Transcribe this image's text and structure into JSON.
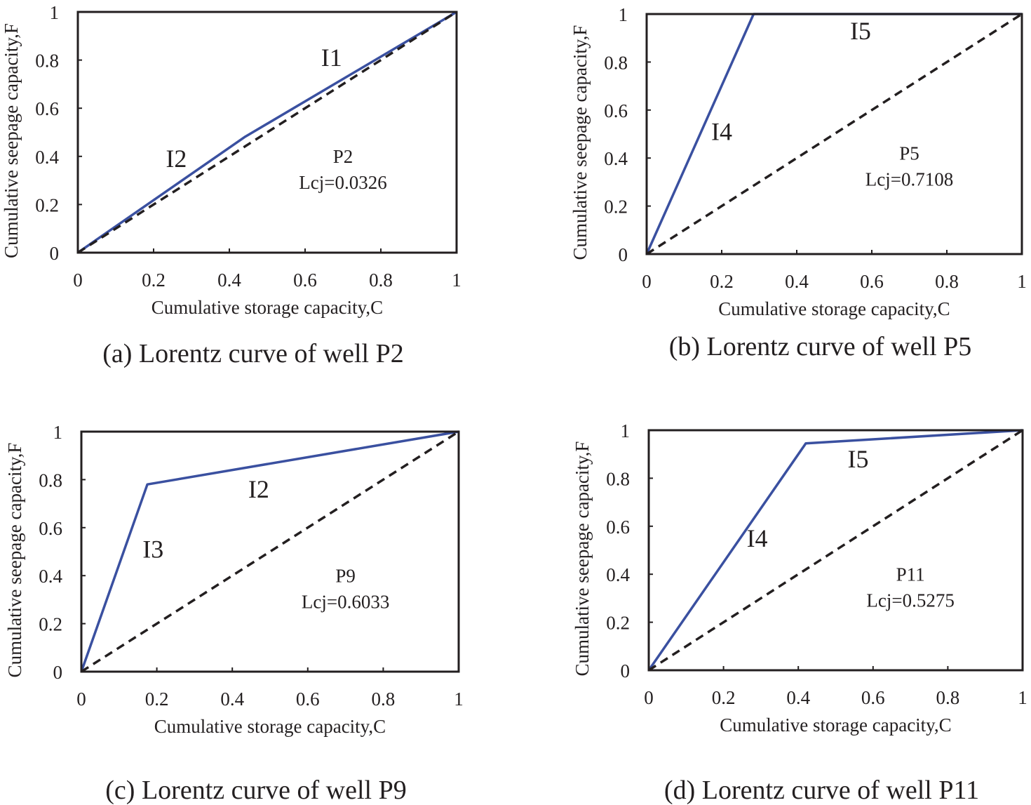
{
  "chart_data": [
    {
      "type": "line",
      "caption": "(a) Lorentz curve of well P2",
      "xlabel": "Cumulative storage capacity,C",
      "ylabel": "Cumulative seepage capacity,F",
      "xlim": [
        0,
        1
      ],
      "ylim": [
        0,
        1
      ],
      "xticks": [
        "0",
        "0.2",
        "0.4",
        "0.6",
        "0.8",
        "1"
      ],
      "yticks": [
        "0",
        "0.2",
        "0.4",
        "0.6",
        "0.8",
        "1"
      ],
      "series": [
        {
          "x": [
            0,
            0.44,
            1
          ],
          "y": [
            0,
            0.48,
            1
          ],
          "color": "#3a50a0"
        },
        {
          "x": [
            0,
            1
          ],
          "y": [
            0,
            1
          ],
          "color": "#231f20",
          "style": "dashed"
        }
      ],
      "segment_labels": [
        {
          "text": "I1",
          "x": 0.67,
          "y": 0.81
        },
        {
          "text": "I2",
          "x": 0.26,
          "y": 0.39
        }
      ],
      "well": "P2",
      "lcj": "Lcj=0.0326",
      "annotation_pos": [
        0.7,
        0.3
      ]
    },
    {
      "type": "line",
      "caption": "(b) Lorentz curve of well P5",
      "xlabel": "Cumulative storage capacity,C",
      "ylabel": "Cumulative seepage capacity,F",
      "xlim": [
        0,
        1
      ],
      "ylim": [
        0,
        1
      ],
      "xticks": [
        "0",
        "0.2",
        "0.4",
        "0.6",
        "0.8",
        "1"
      ],
      "yticks": [
        "0",
        "0.2",
        "0.4",
        "0.6",
        "0.8",
        "1"
      ],
      "series": [
        {
          "x": [
            0,
            0.285,
            1
          ],
          "y": [
            0,
            1,
            1
          ],
          "color": "#3a50a0"
        },
        {
          "x": [
            0,
            1
          ],
          "y": [
            0,
            1
          ],
          "color": "#231f20",
          "style": "dashed"
        }
      ],
      "segment_labels": [
        {
          "text": "I5",
          "x": 0.57,
          "y": 0.93
        },
        {
          "text": "I4",
          "x": 0.2,
          "y": 0.51
        }
      ],
      "well": "P5",
      "lcj": "Lcj=0.7108",
      "annotation_pos": [
        0.7,
        0.32
      ]
    },
    {
      "type": "line",
      "caption": "(c) Lorentz curve of well P9",
      "xlabel": "Cumulative storage capacity,C",
      "ylabel": "Cumulative seepage capacity,F",
      "xlim": [
        0,
        1
      ],
      "ylim": [
        0,
        1
      ],
      "xticks": [
        "0",
        "0.2",
        "0.4",
        "0.6",
        "0.8",
        "1"
      ],
      "yticks": [
        "0",
        "0.2",
        "0.4",
        "0.6",
        "0.8",
        "1"
      ],
      "series": [
        {
          "x": [
            0,
            0.175,
            1
          ],
          "y": [
            0,
            0.78,
            1
          ],
          "color": "#3a50a0"
        },
        {
          "x": [
            0,
            1
          ],
          "y": [
            0,
            1
          ],
          "color": "#231f20",
          "style": "dashed"
        }
      ],
      "segment_labels": [
        {
          "text": "I2",
          "x": 0.47,
          "y": 0.76
        },
        {
          "text": "I3",
          "x": 0.19,
          "y": 0.51
        }
      ],
      "well": "P9",
      "lcj": "Lcj=0.6033",
      "annotation_pos": [
        0.7,
        0.3
      ]
    },
    {
      "type": "line",
      "caption": "(d) Lorentz curve of well P11",
      "xlabel": "Cumulative storage capacity,C",
      "ylabel": "Cumulative seepage capacity,F",
      "xlim": [
        0,
        1
      ],
      "ylim": [
        0,
        1
      ],
      "xticks": [
        "0",
        "0.2",
        "0.4",
        "0.6",
        "0.8",
        "1"
      ],
      "yticks": [
        "0",
        "0.2",
        "0.4",
        "0.6",
        "0.8",
        "1"
      ],
      "series": [
        {
          "x": [
            0,
            0.42,
            1
          ],
          "y": [
            0,
            0.945,
            1
          ],
          "color": "#3a50a0"
        },
        {
          "x": [
            0,
            1
          ],
          "y": [
            0,
            1
          ],
          "color": "#231f20",
          "style": "dashed"
        }
      ],
      "segment_labels": [
        {
          "text": "I5",
          "x": 0.56,
          "y": 0.88
        },
        {
          "text": "I4",
          "x": 0.29,
          "y": 0.55
        }
      ],
      "well": "P11",
      "lcj": "Lcj=0.5275",
      "annotation_pos": [
        0.7,
        0.3
      ]
    }
  ]
}
